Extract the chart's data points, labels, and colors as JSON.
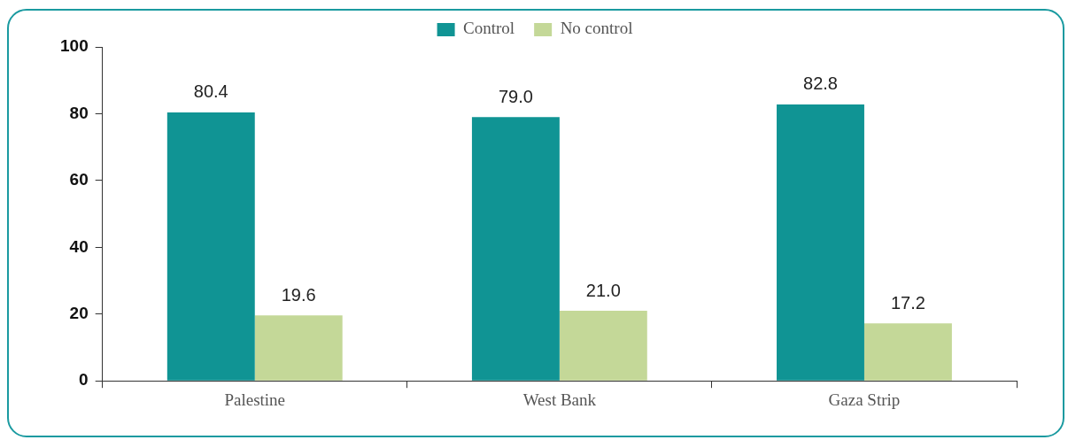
{
  "chart_data": {
    "type": "bar",
    "categories": [
      "Palestine",
      "West Bank",
      "Gaza Strip"
    ],
    "series": [
      {
        "name": "Control",
        "color": "#109494",
        "values": [
          80.4,
          79.0,
          82.8
        ],
        "value_labels": [
          "80.4",
          "79.0",
          "82.8"
        ]
      },
      {
        "name": "No control",
        "color": "#c4d898",
        "values": [
          19.6,
          21.0,
          17.2
        ],
        "value_labels": [
          "19.6",
          "21.0",
          "17.2"
        ]
      }
    ],
    "ylim": [
      0,
      100
    ],
    "yticks": [
      0,
      20,
      40,
      60,
      80,
      100
    ],
    "grid": false,
    "legend": "top"
  }
}
